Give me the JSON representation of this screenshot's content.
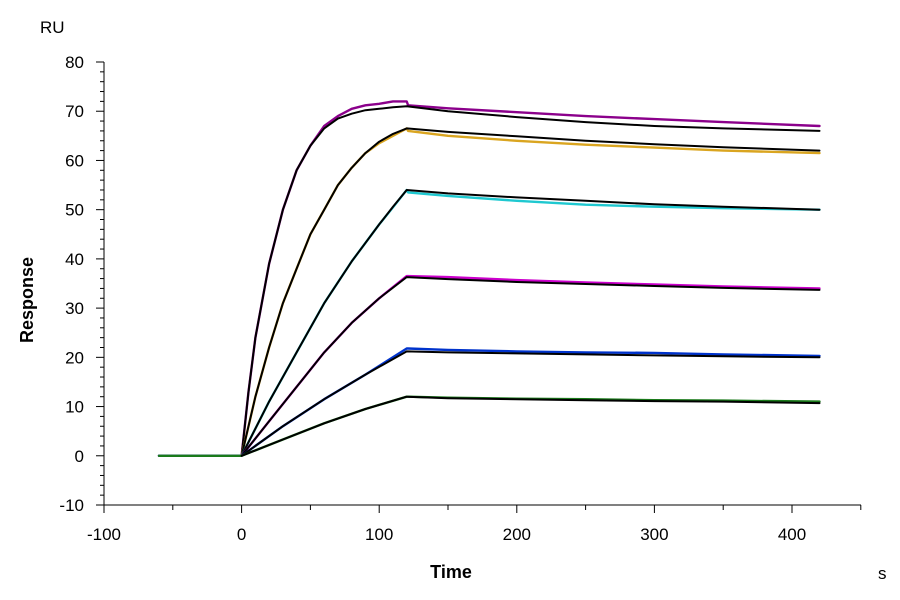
{
  "chart_data": {
    "type": "line",
    "title": "",
    "xlabel": "Time",
    "ylabel": "Response",
    "x_unit": "s",
    "y_unit": "RU",
    "xlim": [
      -100,
      450
    ],
    "ylim": [
      -10,
      80
    ],
    "x_ticks": [
      -100,
      0,
      100,
      200,
      300,
      400
    ],
    "y_ticks": [
      -10,
      0,
      10,
      20,
      30,
      40,
      50,
      60,
      70,
      80
    ],
    "grid": false,
    "legend": "none",
    "series": [
      {
        "kind": "measured",
        "color": "#8B008B",
        "points": [
          [
            -60,
            0
          ],
          [
            0,
            0
          ],
          [
            5,
            13
          ],
          [
            10,
            24
          ],
          [
            20,
            39
          ],
          [
            30,
            50
          ],
          [
            40,
            58
          ],
          [
            50,
            63
          ],
          [
            60,
            67
          ],
          [
            70,
            69
          ],
          [
            80,
            70.5
          ],
          [
            90,
            71.2
          ],
          [
            100,
            71.5
          ],
          [
            110,
            72
          ],
          [
            120,
            72
          ],
          [
            121,
            71.2
          ],
          [
            150,
            70.6
          ],
          [
            200,
            69.8
          ],
          [
            250,
            69
          ],
          [
            300,
            68.4
          ],
          [
            350,
            67.8
          ],
          [
            420,
            67
          ]
        ]
      },
      {
        "kind": "fit",
        "color": "#000000",
        "points": [
          [
            0,
            0
          ],
          [
            5,
            13
          ],
          [
            10,
            24
          ],
          [
            20,
            39
          ],
          [
            30,
            50
          ],
          [
            40,
            58
          ],
          [
            50,
            63
          ],
          [
            60,
            66.5
          ],
          [
            70,
            68.5
          ],
          [
            80,
            69.5
          ],
          [
            90,
            70.2
          ],
          [
            100,
            70.5
          ],
          [
            110,
            70.8
          ],
          [
            120,
            71
          ],
          [
            150,
            70
          ],
          [
            200,
            68.8
          ],
          [
            250,
            67.8
          ],
          [
            300,
            67
          ],
          [
            350,
            66.5
          ],
          [
            420,
            66
          ]
        ]
      },
      {
        "kind": "measured",
        "color": "#DAA520",
        "points": [
          [
            -60,
            0
          ],
          [
            0,
            0
          ],
          [
            10,
            12
          ],
          [
            20,
            22
          ],
          [
            30,
            31
          ],
          [
            40,
            38
          ],
          [
            50,
            45
          ],
          [
            60,
            50
          ],
          [
            70,
            55
          ],
          [
            80,
            58.5
          ],
          [
            90,
            61.5
          ],
          [
            100,
            63.5
          ],
          [
            110,
            65
          ],
          [
            120,
            66.5
          ],
          [
            121,
            66
          ],
          [
            150,
            65
          ],
          [
            200,
            64
          ],
          [
            250,
            63.2
          ],
          [
            300,
            62.6
          ],
          [
            350,
            62
          ],
          [
            420,
            61.5
          ]
        ]
      },
      {
        "kind": "fit",
        "color": "#000000",
        "points": [
          [
            0,
            0
          ],
          [
            10,
            12
          ],
          [
            20,
            22
          ],
          [
            30,
            31
          ],
          [
            40,
            38
          ],
          [
            50,
            45
          ],
          [
            60,
            50
          ],
          [
            70,
            55
          ],
          [
            80,
            58.5
          ],
          [
            90,
            61.5
          ],
          [
            100,
            63.8
          ],
          [
            110,
            65.4
          ],
          [
            120,
            66.5
          ],
          [
            150,
            65.8
          ],
          [
            200,
            64.9
          ],
          [
            250,
            64
          ],
          [
            300,
            63.3
          ],
          [
            350,
            62.7
          ],
          [
            420,
            62
          ]
        ]
      },
      {
        "kind": "measured",
        "color": "#1FC8D0",
        "points": [
          [
            -60,
            0
          ],
          [
            0,
            0
          ],
          [
            20,
            11
          ],
          [
            40,
            21
          ],
          [
            60,
            31
          ],
          [
            80,
            39.5
          ],
          [
            100,
            47
          ],
          [
            110,
            50.5
          ],
          [
            120,
            54
          ],
          [
            121,
            53.5
          ],
          [
            150,
            52.8
          ],
          [
            200,
            51.8
          ],
          [
            250,
            51
          ],
          [
            300,
            50.6
          ],
          [
            350,
            50.3
          ],
          [
            420,
            50
          ]
        ]
      },
      {
        "kind": "fit",
        "color": "#000000",
        "points": [
          [
            0,
            0
          ],
          [
            20,
            11
          ],
          [
            40,
            21
          ],
          [
            60,
            31
          ],
          [
            80,
            39.5
          ],
          [
            100,
            47
          ],
          [
            110,
            50.6
          ],
          [
            120,
            54
          ],
          [
            150,
            53.3
          ],
          [
            200,
            52.5
          ],
          [
            250,
            51.8
          ],
          [
            300,
            51.1
          ],
          [
            350,
            50.6
          ],
          [
            420,
            50
          ]
        ]
      },
      {
        "kind": "measured",
        "color": "#CC00CC",
        "points": [
          [
            -60,
            0
          ],
          [
            0,
            0
          ],
          [
            20,
            7
          ],
          [
            40,
            14
          ],
          [
            60,
            21
          ],
          [
            80,
            27
          ],
          [
            100,
            32
          ],
          [
            120,
            36.5
          ],
          [
            121,
            36.5
          ],
          [
            150,
            36.3
          ],
          [
            200,
            35.7
          ],
          [
            250,
            35.2
          ],
          [
            300,
            34.8
          ],
          [
            350,
            34.4
          ],
          [
            420,
            34
          ]
        ]
      },
      {
        "kind": "fit",
        "color": "#000000",
        "points": [
          [
            0,
            0
          ],
          [
            20,
            7
          ],
          [
            40,
            14
          ],
          [
            60,
            21
          ],
          [
            80,
            27
          ],
          [
            100,
            32
          ],
          [
            120,
            36.3
          ],
          [
            150,
            35.9
          ],
          [
            200,
            35.3
          ],
          [
            250,
            34.9
          ],
          [
            300,
            34.5
          ],
          [
            350,
            34.1
          ],
          [
            420,
            33.7
          ]
        ]
      },
      {
        "kind": "measured",
        "color": "#0033CC",
        "points": [
          [
            -60,
            0
          ],
          [
            0,
            0
          ],
          [
            30,
            6
          ],
          [
            60,
            11.5
          ],
          [
            90,
            16.5
          ],
          [
            120,
            21.8
          ],
          [
            121,
            21.8
          ],
          [
            150,
            21.5
          ],
          [
            200,
            21.2
          ],
          [
            250,
            21
          ],
          [
            300,
            20.9
          ],
          [
            350,
            20.6
          ],
          [
            420,
            20.3
          ]
        ]
      },
      {
        "kind": "fit",
        "color": "#000000",
        "points": [
          [
            0,
            0
          ],
          [
            30,
            6
          ],
          [
            60,
            11.5
          ],
          [
            90,
            16.5
          ],
          [
            120,
            21.2
          ],
          [
            150,
            21
          ],
          [
            200,
            20.8
          ],
          [
            250,
            20.6
          ],
          [
            300,
            20.4
          ],
          [
            350,
            20.2
          ],
          [
            420,
            20
          ]
        ]
      },
      {
        "kind": "measured",
        "color": "#1A7A1A",
        "points": [
          [
            -60,
            0
          ],
          [
            0,
            0
          ],
          [
            30,
            3.3
          ],
          [
            60,
            6.6
          ],
          [
            90,
            9.5
          ],
          [
            120,
            12
          ],
          [
            121,
            12
          ],
          [
            150,
            11.8
          ],
          [
            200,
            11.6
          ],
          [
            250,
            11.5
          ],
          [
            300,
            11.3
          ],
          [
            350,
            11.2
          ],
          [
            420,
            11
          ]
        ]
      },
      {
        "kind": "fit",
        "color": "#000000",
        "points": [
          [
            0,
            0
          ],
          [
            30,
            3.3
          ],
          [
            60,
            6.6
          ],
          [
            90,
            9.5
          ],
          [
            120,
            12
          ],
          [
            150,
            11.7
          ],
          [
            200,
            11.5
          ],
          [
            250,
            11.3
          ],
          [
            300,
            11.1
          ],
          [
            350,
            11
          ],
          [
            420,
            10.7
          ]
        ]
      }
    ]
  }
}
